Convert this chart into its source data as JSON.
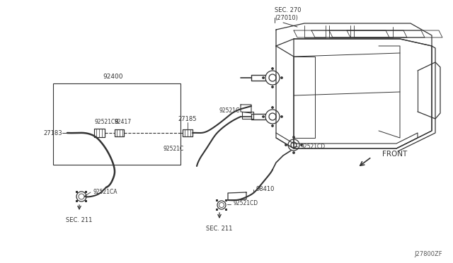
{
  "bg_color": "#ffffff",
  "line_color": "#333333",
  "text_color": "#333333",
  "figsize": [
    6.4,
    3.72
  ],
  "dpi": 100,
  "title_code": "J27800ZF",
  "labels": {
    "sec270": "SEC. 270\n(27010)",
    "92400": "92400",
    "92521CB": "92521CB",
    "92417": "92417",
    "92521C_top": "92521C",
    "27185": "27185",
    "27183": "27183",
    "92521C_mid": "92521C",
    "92521CA": "92521CA",
    "sec211_left": "SEC. 211",
    "92521CD_right": "92521CD",
    "98410": "98410",
    "92521CD_bot": "92521CD",
    "sec211_bot": "SEC. 211",
    "front": "FRONT"
  }
}
